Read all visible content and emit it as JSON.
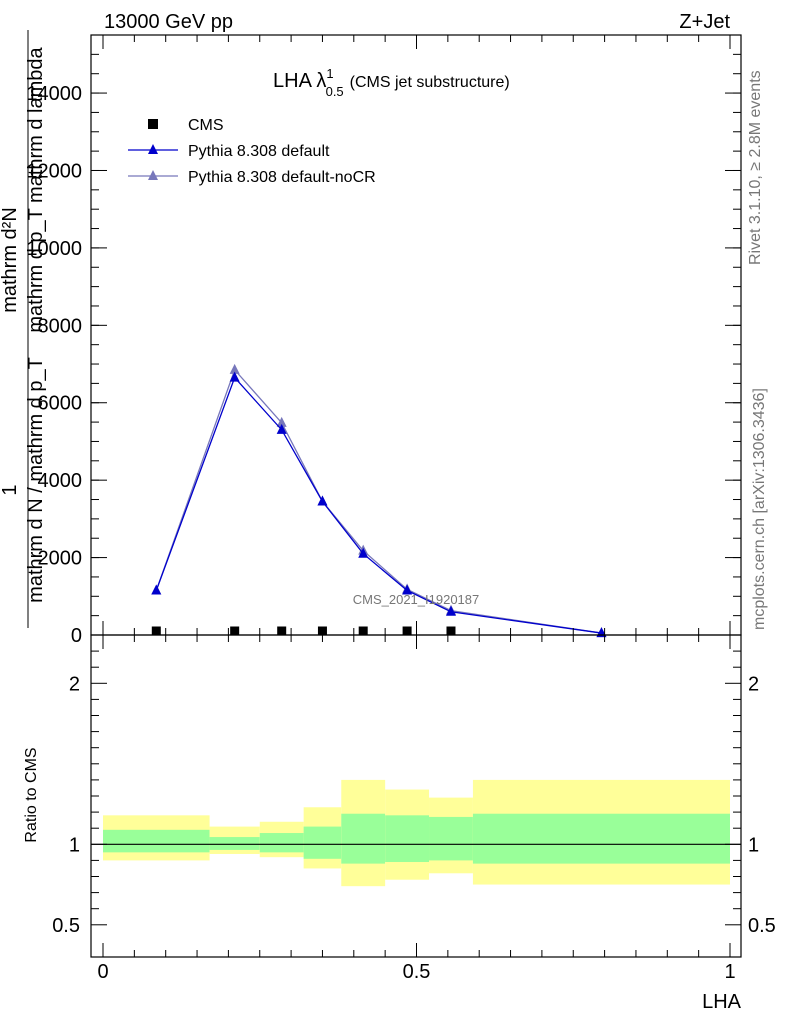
{
  "header": {
    "left": "13000 GeV pp",
    "right": "Z+Jet"
  },
  "side": {
    "rivet": "Rivet 3.1.10, ≥ 2.8M events",
    "mcplots": "mcplots.cern.ch [arXiv:1306.3436]"
  },
  "main_plot": {
    "title_main": "LHA λ",
    "title_sup": "1",
    "title_sub": "0.5",
    "title_rest": "(CMS jet substructure)",
    "ylabel_top": "mathrm d²N",
    "ylabel_top2": "mathrm d p_T mathrm d lambda",
    "ylabel_one": "1",
    "ylabel_bottom": "mathrm d N / mathrm d p_T",
    "watermark": "CMS_2021_I1920187"
  },
  "ratio_plot": {
    "ylabel": "Ratio to CMS"
  },
  "xlabel": "LHA",
  "colors": {
    "data": "#000000",
    "default": "#0000cc",
    "noCR": "#7777bb",
    "band_inner": "#99ff99",
    "band_outer": "#ffff99"
  },
  "chart_data": {
    "type": "line",
    "x_range": [
      0,
      1
    ],
    "main_y_range": [
      0,
      15500
    ],
    "main_y_ticks": [
      {
        "v": 0,
        "label": "0"
      },
      {
        "v": 2000,
        "label": "2000"
      },
      {
        "v": 4000,
        "label": "4000"
      },
      {
        "v": 6000,
        "label": "6000"
      },
      {
        "v": 8000,
        "label": "8000"
      },
      {
        "v": 10000,
        "label": "10000"
      },
      {
        "v": 12000,
        "label": "12000"
      },
      {
        "v": 14000,
        "label": "14000"
      }
    ],
    "ratio_y_range": [
      0.3,
      2.3
    ],
    "ratio_y_ticks": [
      {
        "v": 0.5,
        "label": "0.5"
      },
      {
        "v": 1,
        "label": "1"
      },
      {
        "v": 2,
        "label": "2"
      }
    ],
    "x_ticks": [
      {
        "v": 0,
        "label": "0"
      },
      {
        "v": 0.5,
        "label": "0.5"
      },
      {
        "v": 1,
        "label": "1"
      }
    ],
    "legend": [
      "CMS",
      "Pythia 8.308 default",
      "Pythia 8.308 default-noCR"
    ],
    "series": [
      {
        "name": "CMS",
        "style": "square",
        "x": [
          0.085,
          0.21,
          0.285,
          0.35,
          0.415,
          0.485,
          0.555
        ],
        "y": [
          40,
          40,
          40,
          40,
          40,
          40,
          40
        ]
      },
      {
        "name": "Pythia 8.308 default",
        "style": "triangle",
        "x": [
          0.085,
          0.21,
          0.285,
          0.35,
          0.415,
          0.485,
          0.555,
          0.795
        ],
        "y": [
          1150,
          6650,
          5300,
          3450,
          2100,
          1150,
          600,
          50
        ]
      },
      {
        "name": "Pythia 8.308 default-noCR",
        "style": "triangle",
        "x": [
          0.085,
          0.21,
          0.285,
          0.35,
          0.415,
          0.485,
          0.555,
          0.795
        ],
        "y": [
          1150,
          6850,
          5480,
          3450,
          2180,
          1180,
          630,
          50
        ]
      }
    ],
    "bands": [
      {
        "x0": 0.0,
        "x1": 0.17,
        "in_lo": 0.95,
        "in_hi": 1.09,
        "out_lo": 0.9,
        "out_hi": 1.18
      },
      {
        "x0": 0.17,
        "x1": 0.25,
        "in_lo": 0.965,
        "in_hi": 1.045,
        "out_lo": 0.94,
        "out_hi": 1.11
      },
      {
        "x0": 0.25,
        "x1": 0.32,
        "in_lo": 0.95,
        "in_hi": 1.07,
        "out_lo": 0.92,
        "out_hi": 1.14
      },
      {
        "x0": 0.32,
        "x1": 0.38,
        "in_lo": 0.91,
        "in_hi": 1.11,
        "out_lo": 0.85,
        "out_hi": 1.23
      },
      {
        "x0": 0.38,
        "x1": 0.45,
        "in_lo": 0.88,
        "in_hi": 1.19,
        "out_lo": 0.74,
        "out_hi": 1.4
      },
      {
        "x0": 0.45,
        "x1": 0.52,
        "in_lo": 0.89,
        "in_hi": 1.18,
        "out_lo": 0.78,
        "out_hi": 1.34
      },
      {
        "x0": 0.52,
        "x1": 0.59,
        "in_lo": 0.9,
        "in_hi": 1.17,
        "out_lo": 0.82,
        "out_hi": 1.29
      },
      {
        "x0": 0.59,
        "x1": 1.0,
        "in_lo": 0.88,
        "in_hi": 1.19,
        "out_lo": 0.75,
        "out_hi": 1.4
      }
    ]
  }
}
